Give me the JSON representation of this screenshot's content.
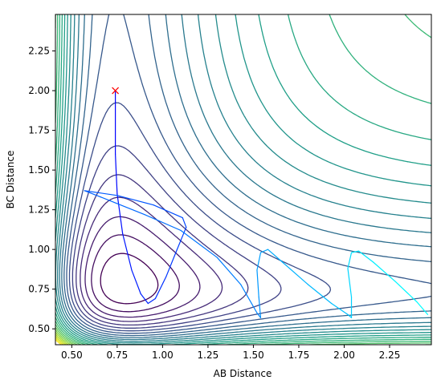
{
  "chart_data": {
    "type": "contour",
    "xlabel": "AB Distance",
    "ylabel": "BC Distance",
    "xlim": [
      0.41,
      2.48
    ],
    "ylim": [
      0.4,
      2.48
    ],
    "x_ticks": [
      "0.50",
      "0.75",
      "1.00",
      "1.25",
      "1.50",
      "1.75",
      "2.00",
      "2.25"
    ],
    "y_ticks": [
      "0.50",
      "0.75",
      "1.00",
      "1.25",
      "1.50",
      "1.75",
      "2.00",
      "2.25"
    ],
    "colormap": [
      "#440154",
      "#482878",
      "#3e4989",
      "#31688e",
      "#26828e",
      "#1f9e89",
      "#35b779",
      "#6ece58",
      "#b5de2b",
      "#fde725"
    ],
    "contour_levels_shown": 26,
    "grid": false,
    "start_marker": {
      "x": 0.74,
      "y": 2.0,
      "symbol": "x",
      "color": "#ff0000"
    },
    "trajectory": {
      "color_start": "#0000ff",
      "color_end": "#00ffff",
      "points": [
        [
          0.74,
          2.0
        ],
        [
          0.74,
          1.6
        ],
        [
          0.75,
          1.35
        ],
        [
          0.78,
          1.1
        ],
        [
          0.83,
          0.87
        ],
        [
          0.88,
          0.72
        ],
        [
          0.92,
          0.66
        ],
        [
          0.96,
          0.69
        ],
        [
          1.02,
          0.83
        ],
        [
          1.08,
          1.0
        ],
        [
          1.13,
          1.14
        ],
        [
          1.11,
          1.2
        ],
        [
          0.95,
          1.28
        ],
        [
          0.75,
          1.34
        ],
        [
          0.57,
          1.37
        ],
        [
          0.66,
          1.33
        ],
        [
          0.9,
          1.22
        ],
        [
          1.1,
          1.12
        ],
        [
          1.3,
          0.95
        ],
        [
          1.43,
          0.78
        ],
        [
          1.52,
          0.6
        ],
        [
          1.54,
          0.57
        ],
        [
          1.53,
          0.7
        ],
        [
          1.52,
          0.87
        ],
        [
          1.54,
          0.98
        ],
        [
          1.58,
          1.0
        ],
        [
          1.66,
          0.92
        ],
        [
          1.8,
          0.78
        ],
        [
          1.93,
          0.66
        ],
        [
          2.02,
          0.59
        ],
        [
          2.04,
          0.57
        ],
        [
          2.04,
          0.7
        ],
        [
          2.02,
          0.88
        ],
        [
          2.04,
          0.98
        ],
        [
          2.08,
          0.99
        ],
        [
          2.16,
          0.92
        ],
        [
          2.28,
          0.8
        ],
        [
          2.4,
          0.67
        ],
        [
          2.46,
          0.59
        ]
      ]
    }
  }
}
